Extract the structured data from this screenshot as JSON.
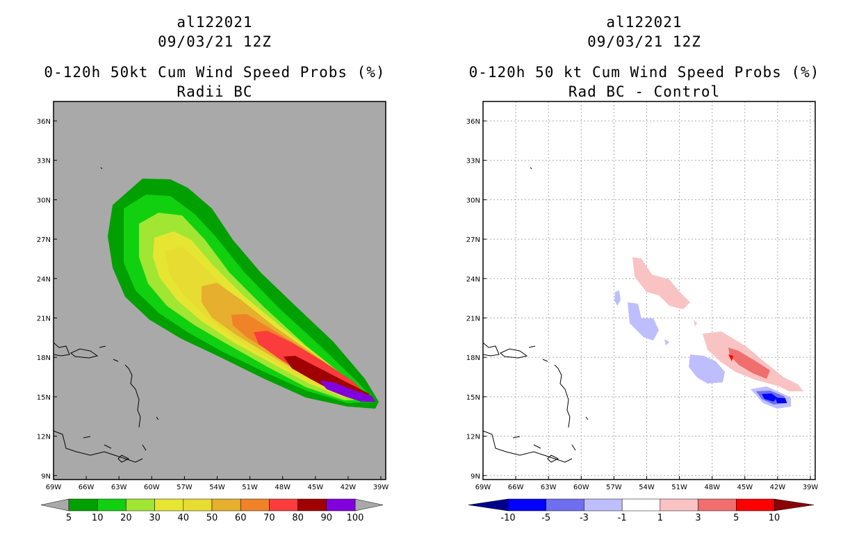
{
  "left": {
    "title_line1": "al122021",
    "title_line2": "09/03/21 12Z",
    "title_line3": "0-120h 50kt Cum Wind Speed Probs (%)",
    "title_line4": "Radii BC",
    "background_color": "#a9a9a9",
    "colorbar": {
      "labels": [
        "5",
        "10",
        "20",
        "30",
        "40",
        "50",
        "60",
        "70",
        "80",
        "90",
        "100"
      ],
      "colors": [
        "#00a000",
        "#10d010",
        "#a0e632",
        "#e6e632",
        "#e6dc32",
        "#e6af2d",
        "#f08228",
        "#fa3c3c",
        "#a00000",
        "#8200dc"
      ],
      "under_color": "#a9a9a9",
      "over_color": "#a9a9a9"
    }
  },
  "right": {
    "title_line1": "al122021",
    "title_line2": "09/03/21 12Z",
    "title_line3": "0-120h 50 kt Cum Wind Speed Probs (%)",
    "title_line4": "Rad BC - Control",
    "background_color": "#ffffff",
    "colorbar": {
      "labels": [
        "-10",
        "-5",
        "-3",
        "-1",
        "1",
        "3",
        "5",
        "10"
      ],
      "colors": [
        "#0000ff",
        "#6e6ef0",
        "#bebeff",
        "#ffffff",
        "#fac3c3",
        "#f06e6e",
        "#ff0000"
      ],
      "under_color": "#00008b",
      "over_color": "#8b0000"
    }
  },
  "axes": {
    "lat_labels": [
      "36N",
      "33N",
      "30N",
      "27N",
      "24N",
      "21N",
      "18N",
      "15N",
      "12N",
      "9N"
    ],
    "lon_labels": [
      "69W",
      "66W",
      "63W",
      "60W",
      "57W",
      "54W",
      "51W",
      "48W",
      "45W",
      "42W",
      "39W"
    ]
  }
}
